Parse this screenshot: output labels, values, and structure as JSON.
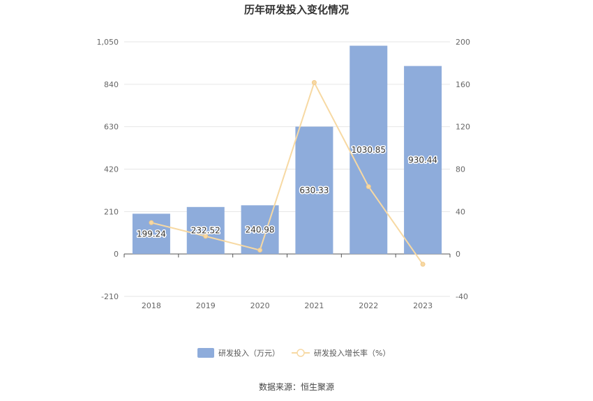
{
  "chart_data": {
    "type": "bar",
    "title": "历年研发投入变化情况",
    "categories": [
      "2018",
      "2019",
      "2020",
      "2021",
      "2022",
      "2023"
    ],
    "series": [
      {
        "name": "研发投入（万元）",
        "type": "bar",
        "axis": "left",
        "values": [
          199.24,
          232.52,
          240.98,
          630.33,
          1030.85,
          930.44
        ],
        "labels": [
          "199.24",
          "232.52",
          "240.98",
          "630.33",
          "1030.85",
          "930.44"
        ],
        "color": "#8eacdb"
      },
      {
        "name": "研发投入增长率（%）",
        "type": "line",
        "axis": "right",
        "values": [
          29.5,
          16.7,
          3.6,
          161.6,
          63.5,
          -9.7
        ],
        "color": "#f7d9a3"
      }
    ],
    "y_left": {
      "ylim": [
        -210,
        1050
      ],
      "ticks": [
        -210,
        0,
        210,
        420,
        630,
        840,
        1050
      ],
      "tick_labels": [
        "-210",
        "0",
        "210",
        "420",
        "630",
        "840",
        "1,050"
      ]
    },
    "y_right": {
      "ylim": [
        -40,
        200
      ],
      "ticks": [
        -40,
        0,
        40,
        80,
        120,
        160,
        200
      ],
      "tick_labels": [
        "-40",
        "0",
        "40",
        "80",
        "120",
        "160",
        "200"
      ]
    },
    "grid": true,
    "legend": "bottom-center"
  },
  "source": "数据来源：恒生聚源"
}
